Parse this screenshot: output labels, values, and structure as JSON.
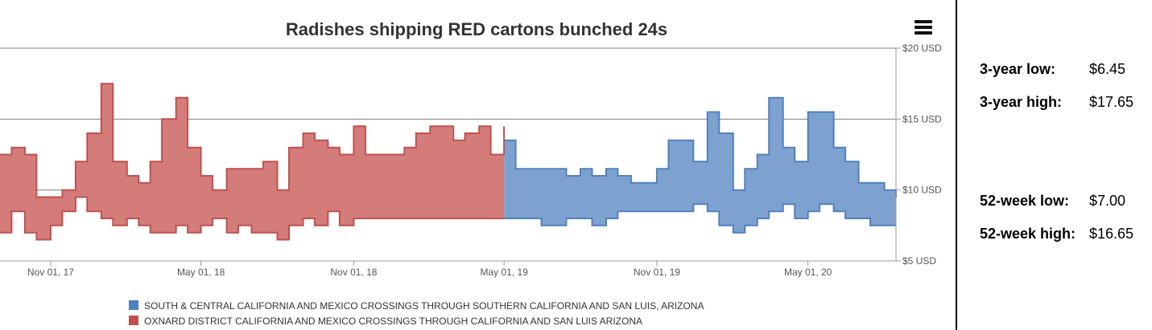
{
  "chart_data": {
    "type": "area",
    "title": "Radishes shipping RED cartons bunched 24s",
    "y_tick_labels": [
      "$5 USD",
      "$10 USD",
      "$15 USD",
      "$20 USD"
    ],
    "y_ticks": [
      5,
      10,
      15,
      20
    ],
    "ylim": [
      5,
      20
    ],
    "x_tick_labels": [
      "Nov 01, 17",
      "May 01, 18",
      "Nov 01, 18",
      "May 01, 19",
      "Nov 01, 19",
      "May 01, 20"
    ],
    "x_ticks": [
      "2017-11-01",
      "2018-05-01",
      "2018-11-01",
      "2019-05-01",
      "2019-11-01",
      "2020-05-01"
    ],
    "xlim": [
      "2017-09-01",
      "2020-08-15"
    ],
    "grid": true,
    "legend_position": "bottom",
    "series": [
      {
        "name": "OXNARD DISTRICT CALIFORNIA AND MEXICO CROSSINGS THROUGH CALIFORNIA AND SAN LUIS ARIZONA",
        "color": "#c0504d",
        "fill": "#d47c7a",
        "x": [
          "2017-09-01",
          "2017-09-15",
          "2017-10-01",
          "2017-10-15",
          "2017-11-01",
          "2017-11-15",
          "2017-12-01",
          "2017-12-15",
          "2018-01-01",
          "2018-01-15",
          "2018-02-01",
          "2018-02-15",
          "2018-03-01",
          "2018-03-15",
          "2018-04-01",
          "2018-04-15",
          "2018-05-01",
          "2018-05-15",
          "2018-06-01",
          "2018-06-15",
          "2018-07-01",
          "2018-07-15",
          "2018-08-01",
          "2018-08-15",
          "2018-09-01",
          "2018-09-15",
          "2018-10-01",
          "2018-10-15",
          "2018-11-01",
          "2018-11-15",
          "2018-12-01",
          "2018-12-15",
          "2019-01-01",
          "2019-01-15",
          "2019-02-01",
          "2019-02-15",
          "2019-03-01",
          "2019-03-15",
          "2019-04-01",
          "2019-04-15",
          "2019-05-01"
        ],
        "low": [
          7.0,
          8.5,
          7.0,
          6.5,
          7.5,
          8.5,
          9.5,
          8.5,
          8.0,
          7.5,
          8.0,
          7.5,
          7.0,
          7.0,
          7.5,
          7.0,
          7.5,
          8.0,
          7.0,
          7.5,
          7.0,
          7.0,
          6.5,
          7.5,
          8.0,
          7.5,
          8.5,
          7.5,
          8.0,
          8.0,
          8.0,
          8.0,
          8.0,
          8.0,
          8.0,
          8.0,
          8.0,
          8.0,
          8.0,
          8.0,
          8.0
        ],
        "high": [
          12.5,
          13.0,
          12.5,
          9.5,
          9.5,
          10.0,
          12.0,
          14.0,
          17.5,
          12.0,
          11.0,
          10.5,
          12.0,
          15.0,
          16.5,
          13.0,
          11.0,
          10.0,
          11.5,
          11.5,
          11.5,
          12.0,
          10.0,
          13.0,
          14.0,
          13.5,
          13.0,
          12.5,
          14.5,
          12.5,
          12.5,
          12.5,
          13.0,
          14.0,
          14.5,
          14.5,
          13.5,
          14.0,
          14.5,
          12.5,
          14.5
        ]
      },
      {
        "name": "SOUTH & CENTRAL CALIFORNIA AND MEXICO CROSSINGS THROUGH SOUTHERN CALIFORNIA AND SAN LUIS, ARIZONA",
        "color": "#4f81bd",
        "fill": "#7ea2d0",
        "x": [
          "2019-05-01",
          "2019-05-15",
          "2019-06-01",
          "2019-06-15",
          "2019-07-01",
          "2019-07-15",
          "2019-08-01",
          "2019-08-15",
          "2019-09-01",
          "2019-09-15",
          "2019-10-01",
          "2019-10-15",
          "2019-11-01",
          "2019-11-15",
          "2019-12-01",
          "2019-12-15",
          "2020-01-01",
          "2020-01-15",
          "2020-02-01",
          "2020-02-15",
          "2020-03-01",
          "2020-03-15",
          "2020-04-01",
          "2020-04-15",
          "2020-05-01",
          "2020-05-15",
          "2020-06-01",
          "2020-06-15",
          "2020-07-01",
          "2020-07-15",
          "2020-08-01",
          "2020-08-15"
        ],
        "low": [
          8.0,
          8.0,
          8.0,
          7.5,
          7.5,
          8.0,
          8.0,
          7.5,
          8.0,
          8.5,
          8.5,
          8.5,
          8.5,
          8.5,
          8.5,
          9.0,
          8.5,
          7.5,
          7.0,
          7.5,
          8.0,
          8.5,
          9.0,
          8.0,
          8.5,
          9.0,
          8.5,
          8.0,
          8.0,
          7.5,
          7.5,
          7.5
        ],
        "high": [
          13.5,
          11.5,
          11.5,
          11.5,
          11.5,
          11.0,
          11.5,
          11.0,
          11.5,
          11.0,
          10.5,
          10.5,
          11.5,
          13.5,
          13.5,
          12.0,
          15.5,
          14.0,
          10.0,
          11.5,
          12.5,
          16.5,
          13.0,
          12.0,
          15.5,
          15.5,
          13.0,
          12.0,
          10.5,
          10.5,
          10.0,
          9.5
        ]
      }
    ]
  },
  "menu_icon": "hamburger-menu-icon",
  "stats": [
    {
      "label": "3-year low:",
      "value": "$6.45"
    },
    {
      "label": "3-year high:",
      "value": "$17.65"
    },
    {
      "label": "52-week low:",
      "value": "$7.00"
    },
    {
      "label": "52-week high:",
      "value": "$16.65"
    }
  ]
}
